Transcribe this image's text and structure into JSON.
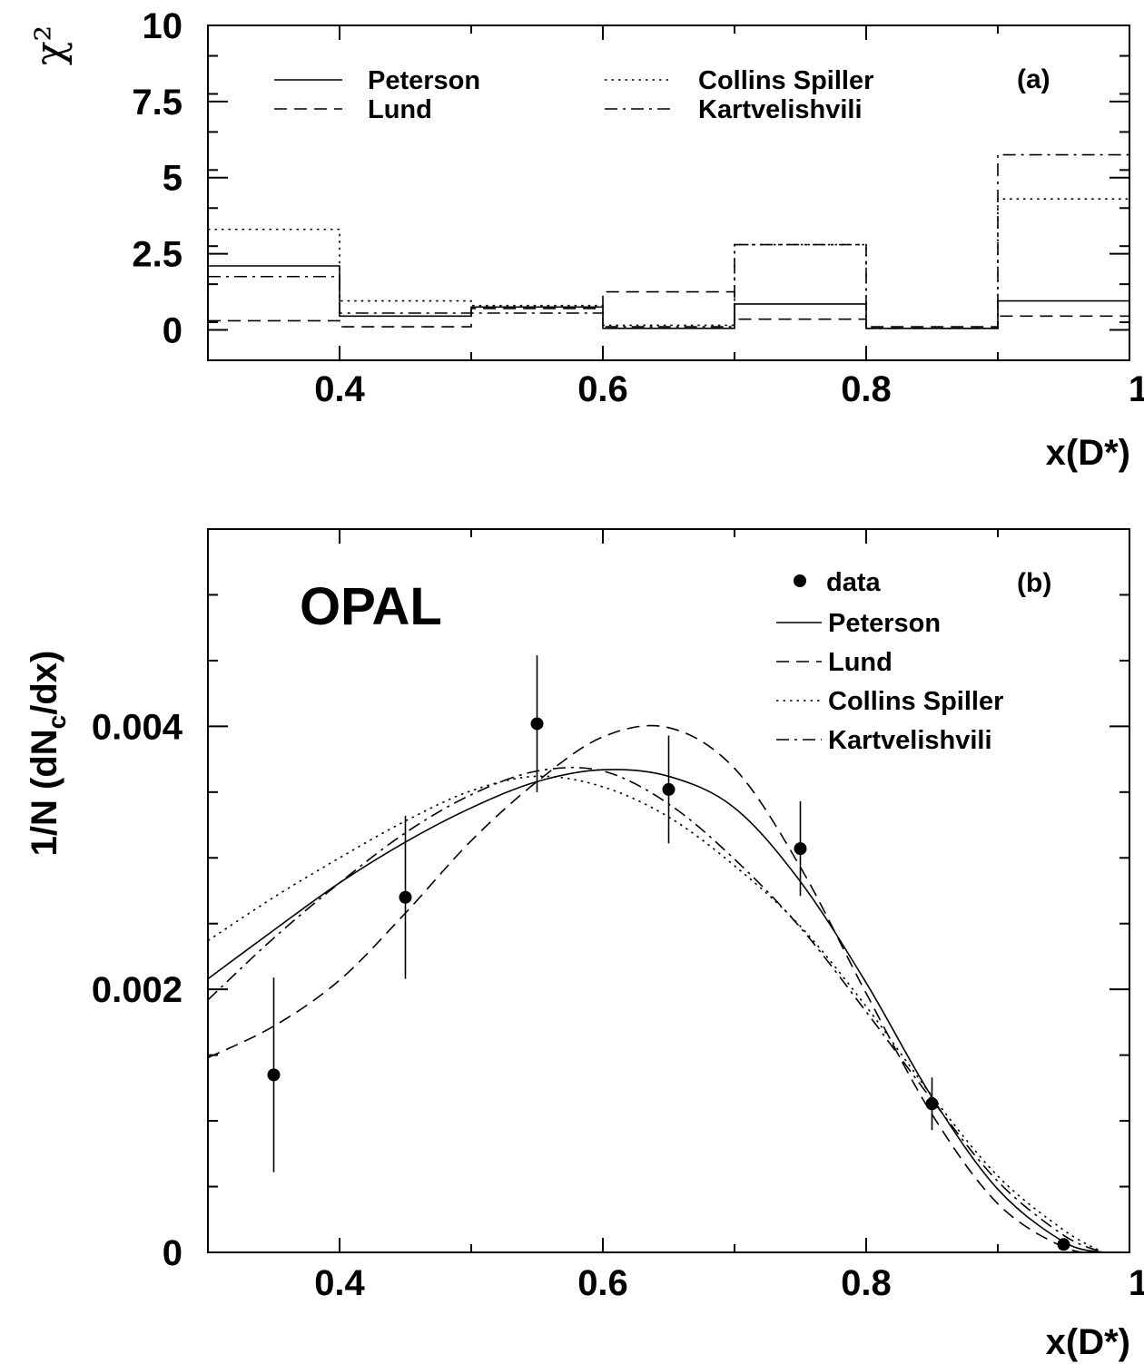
{
  "chart_data": [
    {
      "id": "a",
      "type": "step",
      "panel_label": "(a)",
      "xlabel": "x(D*)",
      "ylabel": "χ²",
      "xlim": [
        0.3,
        1.0
      ],
      "ylim": [
        -1.0,
        10.0
      ],
      "x_ticks": [
        0.4,
        0.6,
        0.8,
        1.0
      ],
      "x_tick_labels": [
        "0.4",
        "0.6",
        "0.8",
        "1"
      ],
      "y_ticks": [
        0,
        2.5,
        5,
        7.5,
        10
      ],
      "y_tick_labels": [
        "0",
        "2.5",
        "5",
        "7.5",
        "10"
      ],
      "bin_edges": [
        0.3,
        0.4,
        0.5,
        0.6,
        0.7,
        0.8,
        0.9,
        1.0
      ],
      "legend_columns": 2,
      "series": [
        {
          "name": "Peterson",
          "style": "solid",
          "values": [
            2.1,
            0.45,
            0.75,
            0.05,
            0.85,
            0.05,
            0.95
          ]
        },
        {
          "name": "Lund",
          "style": "dashed",
          "values": [
            0.3,
            0.1,
            0.7,
            1.25,
            0.35,
            0.1,
            0.45
          ]
        },
        {
          "name": "Collins Spiller",
          "style": "dotted",
          "values": [
            3.3,
            0.95,
            0.8,
            0.15,
            2.8,
            0.05,
            4.3
          ]
        },
        {
          "name": "Kartvelishvili",
          "style": "dashdot",
          "values": [
            1.75,
            0.55,
            0.55,
            0.1,
            2.8,
            0.05,
            5.75
          ]
        }
      ]
    },
    {
      "id": "b",
      "type": "scatter+line",
      "panel_label": "(b)",
      "annotation": "OPAL",
      "xlabel": "x(D*)",
      "ylabel": "1/N (dN",
      "ylabel_sub": "c",
      "ylabel_tail": "/dx)",
      "xlim": [
        0.3,
        1.0
      ],
      "ylim": [
        0.0,
        0.0055
      ],
      "x_ticks": [
        0.4,
        0.6,
        0.8,
        1.0
      ],
      "x_tick_labels": [
        "0.4",
        "0.6",
        "0.8",
        "1"
      ],
      "y_ticks": [
        0,
        0.002,
        0.004
      ],
      "y_tick_labels": [
        "0",
        "0.002",
        "0.004"
      ],
      "data": {
        "name": "data",
        "x": [
          0.35,
          0.45,
          0.55,
          0.65,
          0.75,
          0.85,
          0.95
        ],
        "y": [
          0.00135,
          0.0027,
          0.00402,
          0.00352,
          0.00307,
          0.00113,
          6e-05
        ],
        "err": [
          0.00074,
          0.00062,
          0.00052,
          0.00041,
          0.00036,
          0.0002,
          3e-05
        ]
      },
      "series": [
        {
          "name": "Peterson",
          "style": "solid",
          "x": [
            0.3,
            0.35,
            0.4,
            0.45,
            0.5,
            0.55,
            0.6,
            0.65,
            0.7,
            0.75,
            0.8,
            0.85,
            0.9,
            0.95,
            0.98
          ],
          "y": [
            0.00208,
            0.00245,
            0.00281,
            0.00312,
            0.00338,
            0.00358,
            0.00367,
            0.00362,
            0.00338,
            0.00282,
            0.00205,
            0.00118,
            0.00048,
            8e-05,
            0.0
          ]
        },
        {
          "name": "Lund",
          "style": "dashed",
          "x": [
            0.3,
            0.35,
            0.4,
            0.45,
            0.5,
            0.55,
            0.6,
            0.65,
            0.7,
            0.75,
            0.8,
            0.85,
            0.9,
            0.95,
            0.98
          ],
          "y": [
            0.00148,
            0.00172,
            0.00207,
            0.00258,
            0.00313,
            0.00358,
            0.00392,
            0.00399,
            0.00368,
            0.00293,
            0.00197,
            0.00105,
            0.00037,
            4e-05,
            0.0
          ]
        },
        {
          "name": "Collins Spiller",
          "style": "dotted",
          "x": [
            0.3,
            0.35,
            0.4,
            0.45,
            0.5,
            0.55,
            0.6,
            0.65,
            0.7,
            0.75,
            0.8,
            0.85,
            0.9,
            0.95,
            0.98
          ],
          "y": [
            0.00237,
            0.0027,
            0.003,
            0.00328,
            0.00351,
            0.00362,
            0.00354,
            0.00331,
            0.00294,
            0.00248,
            0.00187,
            0.00119,
            0.00058,
            0.00017,
            0.0
          ]
        },
        {
          "name": "Kartvelishvili",
          "style": "dashdot",
          "x": [
            0.3,
            0.35,
            0.4,
            0.45,
            0.5,
            0.55,
            0.6,
            0.65,
            0.7,
            0.75,
            0.8,
            0.85,
            0.9,
            0.95,
            0.98
          ],
          "y": [
            0.00192,
            0.00239,
            0.00281,
            0.00319,
            0.00348,
            0.00366,
            0.00366,
            0.00341,
            0.00299,
            0.00247,
            0.00183,
            0.00116,
            0.00054,
            0.00013,
            0.0
          ]
        }
      ]
    }
  ]
}
